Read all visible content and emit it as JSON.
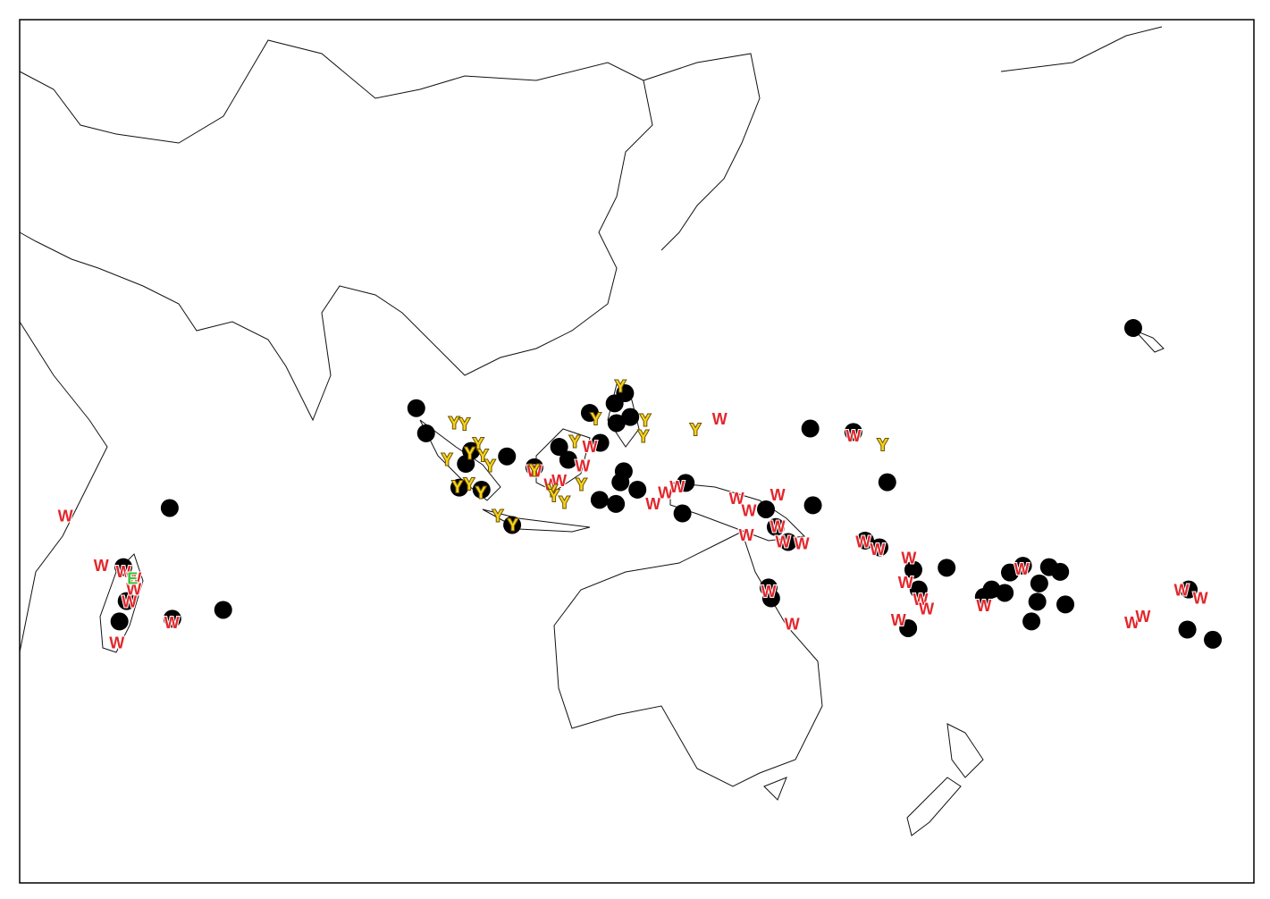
{
  "map": {
    "xlim": [
      33,
      222.2
    ],
    "ylim": [
      -60.3,
      66.8
    ],
    "dots": [
      {
        "lon": 93.8,
        "lat": 9.6
      },
      {
        "lon": 95.3,
        "lat": 5.9
      },
      {
        "lon": 203.7,
        "lat": 21.4
      },
      {
        "lon": 56.0,
        "lat": -5.1
      },
      {
        "lon": 64.2,
        "lat": -20.1
      },
      {
        "lon": 48.3,
        "lat": -21.8
      },
      {
        "lon": 49.4,
        "lat": -18.8
      },
      {
        "lon": 48.9,
        "lat": -13.8
      },
      {
        "lon": 56.4,
        "lat": -21.4
      },
      {
        "lon": 101.4,
        "lat": 1.4
      },
      {
        "lon": 102.2,
        "lat": 3.3
      },
      {
        "lon": 107.7,
        "lat": 2.5
      },
      {
        "lon": 111.9,
        "lat": 0.9
      },
      {
        "lon": 115.7,
        "lat": 3.9
      },
      {
        "lon": 117.1,
        "lat": 2.0
      },
      {
        "lon": 120.4,
        "lat": 8.9
      },
      {
        "lon": 122.0,
        "lat": 4.5
      },
      {
        "lon": 124.2,
        "lat": 10.3
      },
      {
        "lon": 125.8,
        "lat": 11.8
      },
      {
        "lon": 124.5,
        "lat": 7.4
      },
      {
        "lon": 126.6,
        "lat": 8.3
      },
      {
        "lon": 125.6,
        "lat": 0.3
      },
      {
        "lon": 125.1,
        "lat": -1.3
      },
      {
        "lon": 127.7,
        "lat": -2.4
      },
      {
        "lon": 121.9,
        "lat": -3.9
      },
      {
        "lon": 124.4,
        "lat": -4.5
      },
      {
        "lon": 135.1,
        "lat": -1.4
      },
      {
        "lon": 134.6,
        "lat": -5.9
      },
      {
        "lon": 154.2,
        "lat": 6.6
      },
      {
        "lon": 160.8,
        "lat": 6.1
      },
      {
        "lon": 166.0,
        "lat": -1.3
      },
      {
        "lon": 147.4,
        "lat": -5.3
      },
      {
        "lon": 148.9,
        "lat": -7.9
      },
      {
        "lon": 150.8,
        "lat": -10.1
      },
      {
        "lon": 154.6,
        "lat": -4.7
      },
      {
        "lon": 148.2,
        "lat": -18.4
      },
      {
        "lon": 147.8,
        "lat": -16.8
      },
      {
        "lon": 162.6,
        "lat": -9.9
      },
      {
        "lon": 164.8,
        "lat": -10.9
      },
      {
        "lon": 170.0,
        "lat": -14.2
      },
      {
        "lon": 175.1,
        "lat": -13.9
      },
      {
        "lon": 170.8,
        "lat": -17.1
      },
      {
        "lon": 169.2,
        "lat": -22.8
      },
      {
        "lon": 182.0,
        "lat": -17.1
      },
      {
        "lon": 184.0,
        "lat": -17.6
      },
      {
        "lon": 184.8,
        "lat": -14.6
      },
      {
        "lon": 186.8,
        "lat": -13.6
      },
      {
        "lon": 189.3,
        "lat": -16.2
      },
      {
        "lon": 190.8,
        "lat": -13.8
      },
      {
        "lon": 192.5,
        "lat": -14.5
      },
      {
        "lon": 189.0,
        "lat": -18.9
      },
      {
        "lon": 188.1,
        "lat": -21.8
      },
      {
        "lon": 193.3,
        "lat": -19.3
      },
      {
        "lon": 212.0,
        "lat": -23.0
      },
      {
        "lon": 215.9,
        "lat": -24.5
      },
      {
        "lon": 212.2,
        "lat": -17.1
      },
      {
        "lon": 180.8,
        "lat": -18.2
      },
      {
        "lon": 103.8,
        "lat": -2.4
      },
      {
        "lon": 100.4,
        "lat": -2.1
      },
      {
        "lon": 108.5,
        "lat": -7.6
      }
    ],
    "labels": [
      {
        "text": "W",
        "lon": 40.0,
        "lat": -6.3
      },
      {
        "text": "W",
        "lon": 45.5,
        "lat": -13.6
      },
      {
        "text": "W",
        "lon": 48.9,
        "lat": -14.5
      },
      {
        "text": "W",
        "lon": 50.5,
        "lat": -15.5
      },
      {
        "text": "W",
        "lon": 50.5,
        "lat": -17.1
      },
      {
        "text": "W",
        "lon": 49.8,
        "lat": -18.9
      },
      {
        "text": "W",
        "lon": 47.9,
        "lat": -25.0
      },
      {
        "text": "W",
        "lon": 56.3,
        "lat": -22.0
      },
      {
        "text": "W",
        "lon": 140.3,
        "lat": 8.0
      },
      {
        "text": "W",
        "lon": 160.8,
        "lat": 5.5
      },
      {
        "text": "W",
        "lon": 111.9,
        "lat": 0.3
      },
      {
        "text": "W",
        "lon": 119.3,
        "lat": 1.1
      },
      {
        "text": "W",
        "lon": 120.4,
        "lat": 3.9
      },
      {
        "text": "W",
        "lon": 114.5,
        "lat": -1.7
      },
      {
        "text": "W",
        "lon": 130.1,
        "lat": -4.5
      },
      {
        "text": "W",
        "lon": 132.0,
        "lat": -2.9
      },
      {
        "text": "W",
        "lon": 133.8,
        "lat": -2.0
      },
      {
        "text": "W",
        "lon": 142.9,
        "lat": -3.7
      },
      {
        "text": "W",
        "lon": 144.8,
        "lat": -5.5
      },
      {
        "text": "W",
        "lon": 149.2,
        "lat": -3.2
      },
      {
        "text": "W",
        "lon": 149.2,
        "lat": -7.9
      },
      {
        "text": "W",
        "lon": 144.4,
        "lat": -9.1
      },
      {
        "text": "W",
        "lon": 150.0,
        "lat": -10.1
      },
      {
        "text": "W",
        "lon": 152.9,
        "lat": -10.4
      },
      {
        "text": "W",
        "lon": 147.8,
        "lat": -17.4
      },
      {
        "text": "W",
        "lon": 151.4,
        "lat": -22.2
      },
      {
        "text": "W",
        "lon": 162.3,
        "lat": -10.1
      },
      {
        "text": "W",
        "lon": 164.5,
        "lat": -11.2
      },
      {
        "text": "W",
        "lon": 169.3,
        "lat": -12.5
      },
      {
        "text": "W",
        "lon": 168.8,
        "lat": -16.1
      },
      {
        "text": "W",
        "lon": 171.1,
        "lat": -18.6
      },
      {
        "text": "W",
        "lon": 172.0,
        "lat": -20.0
      },
      {
        "text": "W",
        "lon": 167.7,
        "lat": -21.6
      },
      {
        "text": "W",
        "lon": 180.8,
        "lat": -19.5
      },
      {
        "text": "W",
        "lon": 186.6,
        "lat": -14.1
      },
      {
        "text": "W",
        "lon": 203.5,
        "lat": -22.0
      },
      {
        "text": "W",
        "lon": 205.2,
        "lat": -21.1
      },
      {
        "text": "W",
        "lon": 211.1,
        "lat": -17.2
      },
      {
        "text": "W",
        "lon": 214.0,
        "lat": -18.4
      },
      {
        "text": "W",
        "lon": 115.7,
        "lat": -1.1
      },
      {
        "text": "Y",
        "lon": 125.1,
        "lat": 12.8
      },
      {
        "text": "Y",
        "lon": 121.3,
        "lat": 8.0
      },
      {
        "text": "Y",
        "lon": 128.9,
        "lat": 7.8
      },
      {
        "text": "Y",
        "lon": 128.6,
        "lat": 5.4
      },
      {
        "text": "Y",
        "lon": 136.6,
        "lat": 6.4
      },
      {
        "text": "Y",
        "lon": 165.3,
        "lat": 4.2
      },
      {
        "text": "Y",
        "lon": 99.6,
        "lat": 7.4
      },
      {
        "text": "Y",
        "lon": 101.2,
        "lat": 7.2
      },
      {
        "text": "Y",
        "lon": 103.3,
        "lat": 4.3
      },
      {
        "text": "Y",
        "lon": 102.0,
        "lat": 2.9
      },
      {
        "text": "Y",
        "lon": 104.0,
        "lat": 2.6
      },
      {
        "text": "Y",
        "lon": 105.1,
        "lat": 1.1
      },
      {
        "text": "Y",
        "lon": 98.5,
        "lat": 2.0
      },
      {
        "text": "Y",
        "lon": 100.1,
        "lat": -2.0
      },
      {
        "text": "Y",
        "lon": 101.9,
        "lat": -1.6
      },
      {
        "text": "Y",
        "lon": 103.7,
        "lat": -2.9
      },
      {
        "text": "Y",
        "lon": 106.3,
        "lat": -6.3
      },
      {
        "text": "Y",
        "lon": 108.6,
        "lat": -7.6
      },
      {
        "text": "Y",
        "lon": 118.1,
        "lat": 4.6
      },
      {
        "text": "Y",
        "lon": 119.1,
        "lat": -1.7
      },
      {
        "text": "Y",
        "lon": 114.6,
        "lat": -2.6
      },
      {
        "text": "Y",
        "lon": 116.5,
        "lat": -4.3
      },
      {
        "text": "Y",
        "lon": 114.9,
        "lat": -3.3
      },
      {
        "text": "Y",
        "lon": 111.9,
        "lat": 0.4
      },
      {
        "text": "E",
        "lon": 50.3,
        "lat": -15.5
      }
    ],
    "colors": {
      "W": "#e3262b",
      "Y": "#f6d21c",
      "E": "#3cc43c"
    }
  }
}
